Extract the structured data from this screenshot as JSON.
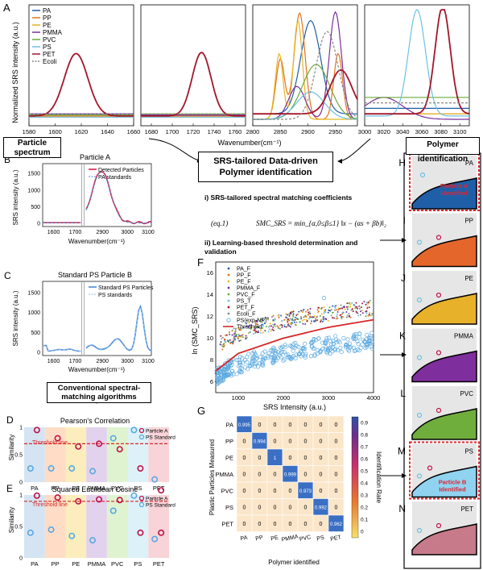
{
  "panel_letters": {
    "A": "A",
    "B": "B",
    "C": "C",
    "D": "D",
    "E": "E",
    "F": "F",
    "G": "G",
    "H": "H",
    "I": "I",
    "J": "J",
    "K": "K",
    "L": "L",
    "M": "M",
    "N": "N"
  },
  "boxes": {
    "particle_spectrum": "Particle spectrum",
    "srs_tailored": "SRS-tailored Data-driven Polymer identification",
    "polymer_identification": "Polymer identification",
    "conventional": "Conventional spectral-matching algorithms"
  },
  "step_i": "i) SRS-tailored spectral matching coefficients",
  "equation": {
    "number": "(eq.1)",
    "body": "SMC_SRS = min_{α,0≤β≤1} ‖x − (αs + βb)‖₂"
  },
  "step_ii": "ii) Learning-based threshold determination and validation",
  "colors": {
    "PA": "#1f5fa8",
    "PP": "#e2731f",
    "PE": "#e6b620",
    "PMMA": "#7a2f9a",
    "PVC": "#6aac3a",
    "PS": "#6cc1e6",
    "PET": "#a3162a",
    "Ecoli": "#888888"
  },
  "chart_data": [
    {
      "type": "line",
      "panel": "A",
      "ylabel": "Normalized SRS intensity (a.u.)",
      "xlabel": "Wavenumber(cm⁻¹)",
      "legend": [
        "PA",
        "PP",
        "PE",
        "PMMA",
        "PVC",
        "PS",
        "PET",
        "Ecoli"
      ],
      "legend_position": "top-left",
      "subpanels": [
        {
          "xlim": [
            1580,
            1660
          ],
          "ticks": [
            1580,
            1600,
            1620,
            1640,
            1660
          ]
        },
        {
          "xlim": [
            1670,
            1770
          ],
          "ticks": [
            1680,
            1700,
            1720,
            1740,
            1760
          ]
        },
        {
          "xlim": [
            2800,
            2990
          ],
          "ticks": [
            2800,
            2850,
            2900,
            2950
          ]
        },
        {
          "xlim": [
            3000,
            3110
          ],
          "ticks": [
            3000,
            3020,
            3040,
            3060,
            3080,
            3100
          ]
        }
      ],
      "peaks": [
        {
          "series": "PET",
          "x": 1616,
          "y": 0.57
        },
        {
          "series": "PET",
          "x": 1728,
          "y": 0.58
        },
        {
          "series": "PP",
          "x": 2885,
          "y": 0.97
        },
        {
          "series": "PE",
          "x": 2882,
          "y": 0.9
        },
        {
          "series": "PMMA",
          "x": 2950,
          "y": 0.98
        },
        {
          "series": "PA",
          "x": 2900,
          "y": 0.85
        },
        {
          "series": "PS",
          "x": 3055,
          "y": 0.97
        },
        {
          "series": "PET",
          "x": 3082,
          "y": 0.98
        }
      ]
    },
    {
      "type": "line",
      "panel": "B",
      "title": "Particle A",
      "xlabel": "Wavenumber(cm⁻¹)",
      "ylabel": "SRS intensity (a.u.)",
      "legend": [
        "Detected Particles",
        "PA standards"
      ],
      "x_ticks": [
        "1600",
        "1700",
        "2900",
        "3000",
        "3100"
      ],
      "y_ticks": [
        "0",
        "500",
        "1000",
        "1500"
      ],
      "peak": {
        "x": 2930,
        "y": 1560
      }
    },
    {
      "type": "line",
      "panel": "C",
      "title": "Standard PS Particle B",
      "xlabel": "Wavenumber(cm⁻¹)",
      "ylabel": "SRS intensity (a.u.)",
      "legend": [
        "Standard PS Particles",
        "PS standards"
      ],
      "x_ticks": [
        "1600",
        "1700",
        "2900",
        "3000",
        "3100"
      ],
      "y_ticks": [
        "0",
        "500",
        "1000",
        "1500"
      ],
      "peak": {
        "x": 3055,
        "y": 1100
      }
    },
    {
      "type": "scatter",
      "panel": "D",
      "title": "Pearson's Correlation",
      "ylabel": "Similarity",
      "threshold_label": "Threshold line",
      "threshold": 0.7,
      "y_ticks": [
        "0",
        "0.5",
        "1"
      ],
      "categories": [
        "PA",
        "PP",
        "PE",
        "PMMA",
        "PVC",
        "PS",
        "PET"
      ],
      "series": [
        {
          "name": "Particle A",
          "values": [
            0.95,
            0.8,
            0.65,
            0.7,
            0.6,
            0.25,
            -0.15
          ]
        },
        {
          "name": "PS Standard",
          "values": [
            0.25,
            0.25,
            0.25,
            0.2,
            0.8,
            0.95,
            0.05
          ]
        }
      ]
    },
    {
      "type": "scatter",
      "panel": "E",
      "title": "Squared Euclidean Cosine",
      "ylabel": "Similarity",
      "threshold_label": "Threshold line",
      "threshold": 0.9,
      "y_ticks": [
        "0",
        "0.5",
        "1"
      ],
      "categories": [
        "PA",
        "PP",
        "PE",
        "PMMA",
        "PVC",
        "PS",
        "PET"
      ],
      "series": [
        {
          "name": "Particle A",
          "values": [
            0.99,
            0.96,
            0.9,
            0.93,
            0.92,
            0.4,
            0.4
          ]
        },
        {
          "name": "PS Standard",
          "values": [
            0.4,
            0.45,
            0.35,
            0.28,
            0.75,
            0.99,
            0.3
          ]
        }
      ]
    },
    {
      "type": "scatter",
      "panel": "F",
      "xlabel": "SRS Intensity (a.u.)",
      "ylabel": "ln (SMC_SRS)",
      "xlim": [
        500,
        4000
      ],
      "ylim": [
        5,
        17
      ],
      "x_ticks": [
        "1000",
        "2000",
        "3000",
        "4000"
      ],
      "y_ticks": [
        "6",
        "8",
        "10",
        "12",
        "14",
        "16"
      ],
      "legend": [
        "PA_F",
        "PP_F",
        "PE_F",
        "PMMA_F",
        "PVC_F",
        "PS_T",
        "PET_F",
        "Ecoli_F",
        "PS(exp-NP)",
        "Threshold"
      ],
      "threshold_curve": [
        [
          500,
          7.0
        ],
        [
          1000,
          8.6
        ],
        [
          2000,
          10.0
        ],
        [
          3000,
          11.0
        ],
        [
          4000,
          11.7
        ]
      ]
    },
    {
      "type": "heatmap",
      "panel": "G",
      "xlabel": "Polymer identified",
      "ylabel": "Plastic Particles Measured",
      "colorbar_label": "Identification Rate",
      "colorbar_ticks": [
        "0",
        "0.1",
        "0.2",
        "0.3",
        "0.4",
        "0.5",
        "0.6",
        "0.7",
        "0.8",
        "0.9"
      ],
      "rows": [
        "PA",
        "PP",
        "PE",
        "PMMA",
        "PVC",
        "PS",
        "PET"
      ],
      "cols": [
        "PA",
        "PP",
        "PE",
        "PMMA",
        "PVC",
        "PS",
        "PET"
      ],
      "cells": [
        [
          "0.995",
          "0",
          "0",
          "0",
          "0",
          "0",
          "0"
        ],
        [
          "0",
          "0.994",
          "0",
          "0",
          "0",
          "0",
          "0"
        ],
        [
          "0",
          "0",
          "1",
          "0",
          "0",
          "0",
          "0"
        ],
        [
          "0",
          "0",
          "0",
          "0.999",
          "0",
          "0",
          "0"
        ],
        [
          "0",
          "0",
          "0",
          "0",
          "0.973",
          "0",
          "0"
        ],
        [
          "0",
          "0",
          "0",
          "0",
          "0",
          "0.992",
          "0"
        ],
        [
          "0",
          "0",
          "0",
          "0",
          "0",
          "0",
          "0.962"
        ]
      ],
      "diag": [
        0.995,
        0.994,
        1,
        0.999,
        0.973,
        0.992,
        0.962
      ]
    },
    {
      "type": "area",
      "panel": "H-N",
      "polymers": [
        "PA",
        "PP",
        "PE",
        "PMMA",
        "PVC",
        "PS",
        "PET"
      ],
      "identified_notes": {
        "H": "Particle A Identified",
        "M": "Particle B Identified"
      }
    }
  ],
  "legend_particle": "Particle A",
  "legend_ps": "PS Standard"
}
